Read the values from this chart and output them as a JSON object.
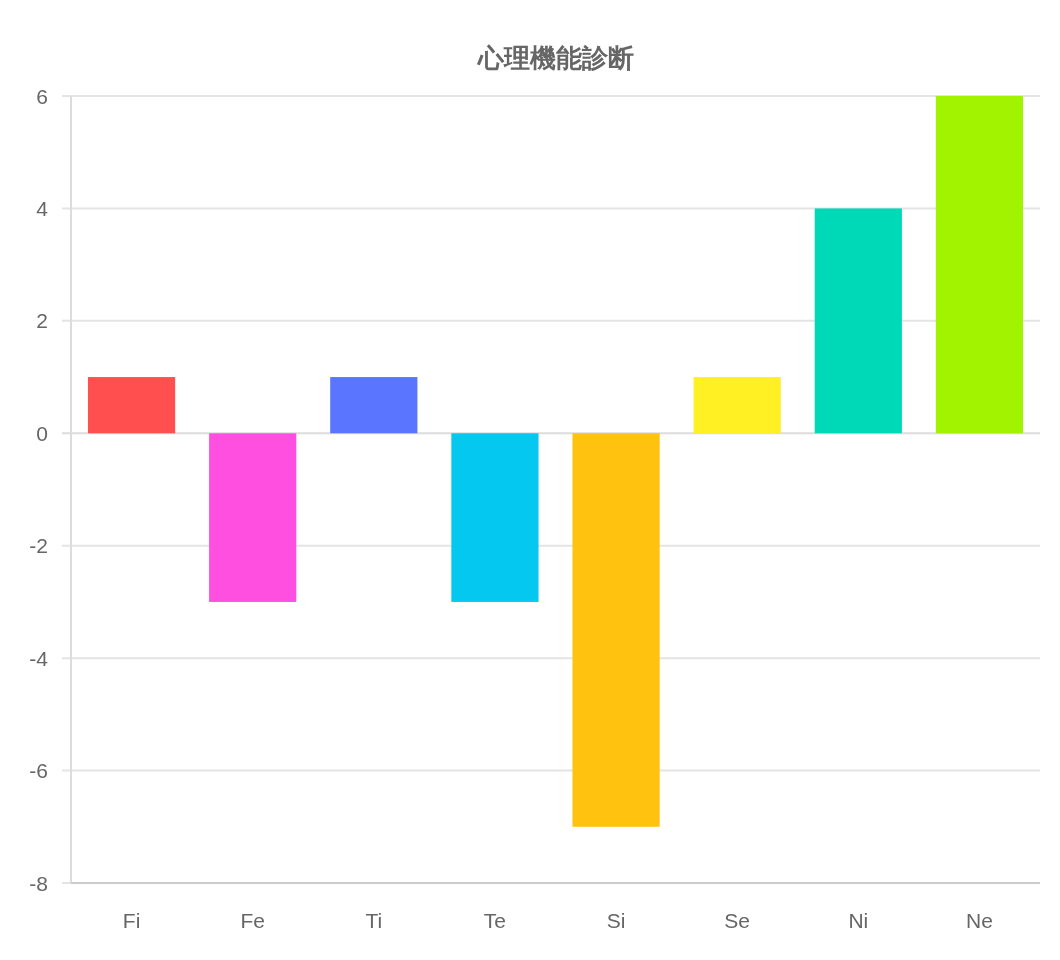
{
  "chart_data": {
    "type": "bar",
    "title": "心理機能診断",
    "categories": [
      "Fi",
      "Fe",
      "Ti",
      "Te",
      "Si",
      "Se",
      "Ni",
      "Ne"
    ],
    "values": [
      1,
      -3,
      1,
      -3,
      -7,
      1,
      4,
      6
    ],
    "colors": [
      "#ff4f4f",
      "#ff4fe0",
      "#5a75ff",
      "#04c8f0",
      "#ffc20e",
      "#fff024",
      "#00d9b7",
      "#a2f300"
    ],
    "ylim": [
      -8,
      6
    ],
    "yticks": [
      -8,
      -6,
      -4,
      -2,
      0,
      2,
      4,
      6
    ],
    "grid": "y"
  }
}
